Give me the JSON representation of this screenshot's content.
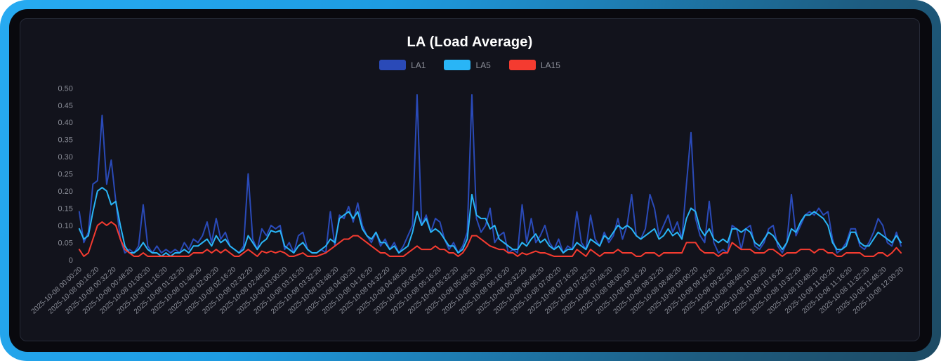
{
  "panel": {
    "title": "LA (Load Average)"
  },
  "chart_data": {
    "type": "line",
    "title": "LA (Load Average)",
    "xlabel": "",
    "ylabel": "",
    "ylim": [
      0,
      0.5
    ],
    "grid": false,
    "legend_position": "top-center",
    "background_color": "#12131c",
    "tick_text_color": "#8b8e98",
    "title_color": "#ffffff",
    "y_ticks": [
      "0",
      "0.05",
      "0.10",
      "0.15",
      "0.20",
      "0.25",
      "0.30",
      "0.35",
      "0.40",
      "0.45",
      "0.50"
    ],
    "x_labels": [
      "2025-10-08 00:00:20",
      "2025-10-08 00:16:20",
      "2025-10-08 00:32:20",
      "2025-10-08 00:48:20",
      "2025-10-08 01:00:20",
      "2025-10-08 01:16:20",
      "2025-10-08 01:32:20",
      "2025-10-08 01:48:20",
      "2025-10-08 02:00:20",
      "2025-10-08 02:16:20",
      "2025-10-08 02:32:20",
      "2025-10-08 02:48:20",
      "2025-10-08 03:00:20",
      "2025-10-08 03:16:20",
      "2025-10-08 03:32:20",
      "2025-10-08 03:48:20",
      "2025-10-08 04:00:20",
      "2025-10-08 04:16:20",
      "2025-10-08 04:32:20",
      "2025-10-08 04:48:20",
      "2025-10-08 05:00:20",
      "2025-10-08 05:16:20",
      "2025-10-08 05:32:20",
      "2025-10-08 05:48:20",
      "2025-10-08 06:00:20",
      "2025-10-08 06:16:20",
      "2025-10-08 06:32:20",
      "2025-10-08 06:48:20",
      "2025-10-08 07:00:20",
      "2025-10-08 07:16:20",
      "2025-10-08 07:32:20",
      "2025-10-08 07:48:20",
      "2025-10-08 08:00:20",
      "2025-10-08 08:16:20",
      "2025-10-08 08:32:20",
      "2025-10-08 08:48:20",
      "2025-10-08 09:00:20",
      "2025-10-08 09:16:20",
      "2025-10-08 09:32:20",
      "2025-10-08 09:48:20",
      "2025-10-08 10:00:20",
      "2025-10-08 10:16:20",
      "2025-10-08 10:32:20",
      "2025-10-08 10:48:20",
      "2025-10-08 11:00:20",
      "2025-10-08 11:16:20",
      "2025-10-08 11:32:20",
      "2025-10-08 11:48:20",
      "2025-10-08 12:00:20"
    ],
    "sample_interval_minutes": 4,
    "series": [
      {
        "name": "LA1",
        "color": "#2a4ab8",
        "values": [
          0.14,
          0.05,
          0.08,
          0.22,
          0.23,
          0.42,
          0.22,
          0.29,
          0.17,
          0.06,
          0.02,
          0.03,
          0.02,
          0.04,
          0.16,
          0.04,
          0.02,
          0.04,
          0.02,
          0.03,
          0.02,
          0.03,
          0.02,
          0.05,
          0.03,
          0.06,
          0.05,
          0.07,
          0.11,
          0.05,
          0.12,
          0.06,
          0.08,
          0.04,
          0.03,
          0.02,
          0.04,
          0.25,
          0.06,
          0.03,
          0.09,
          0.07,
          0.1,
          0.09,
          0.1,
          0.03,
          0.05,
          0.02,
          0.07,
          0.08,
          0.03,
          0.02,
          0.02,
          0.03,
          0.02,
          0.14,
          0.04,
          0.13,
          0.12,
          0.155,
          0.11,
          0.165,
          0.1,
          0.07,
          0.05,
          0.08,
          0.04,
          0.06,
          0.03,
          0.05,
          0.02,
          0.04,
          0.07,
          0.1,
          0.48,
          0.1,
          0.13,
          0.08,
          0.12,
          0.11,
          0.06,
          0.03,
          0.05,
          0.02,
          0.04,
          0.08,
          0.48,
          0.12,
          0.08,
          0.1,
          0.15,
          0.05,
          0.07,
          0.08,
          0.02,
          0.03,
          0.02,
          0.16,
          0.05,
          0.12,
          0.05,
          0.07,
          0.1,
          0.05,
          0.03,
          0.06,
          0.02,
          0.04,
          0.03,
          0.14,
          0.05,
          0.03,
          0.13,
          0.06,
          0.04,
          0.08,
          0.05,
          0.07,
          0.12,
          0.06,
          0.1,
          0.19,
          0.07,
          0.06,
          0.09,
          0.19,
          0.15,
          0.07,
          0.1,
          0.13,
          0.08,
          0.11,
          0.06,
          0.22,
          0.37,
          0.12,
          0.07,
          0.05,
          0.17,
          0.05,
          0.02,
          0.03,
          0.02,
          0.1,
          0.09,
          0.03,
          0.09,
          0.1,
          0.04,
          0.03,
          0.05,
          0.09,
          0.1,
          0.04,
          0.02,
          0.05,
          0.19,
          0.07,
          0.1,
          0.13,
          0.14,
          0.13,
          0.15,
          0.13,
          0.14,
          0.06,
          0.02,
          0.03,
          0.05,
          0.09,
          0.09,
          0.04,
          0.03,
          0.05,
          0.08,
          0.12,
          0.1,
          0.05,
          0.04,
          0.08,
          0.04
        ]
      },
      {
        "name": "LA5",
        "color": "#29b5f6",
        "values": [
          0.09,
          0.06,
          0.07,
          0.14,
          0.2,
          0.21,
          0.2,
          0.16,
          0.17,
          0.1,
          0.04,
          0.02,
          0.02,
          0.03,
          0.05,
          0.03,
          0.02,
          0.02,
          0.01,
          0.02,
          0.01,
          0.02,
          0.02,
          0.03,
          0.02,
          0.04,
          0.04,
          0.05,
          0.06,
          0.04,
          0.07,
          0.05,
          0.06,
          0.04,
          0.03,
          0.02,
          0.03,
          0.07,
          0.05,
          0.03,
          0.05,
          0.06,
          0.085,
          0.08,
          0.085,
          0.04,
          0.03,
          0.02,
          0.04,
          0.05,
          0.03,
          0.02,
          0.02,
          0.03,
          0.04,
          0.06,
          0.05,
          0.12,
          0.13,
          0.14,
          0.12,
          0.14,
          0.09,
          0.07,
          0.06,
          0.08,
          0.05,
          0.05,
          0.03,
          0.04,
          0.02,
          0.03,
          0.04,
          0.08,
          0.14,
          0.1,
          0.12,
          0.08,
          0.09,
          0.08,
          0.06,
          0.04,
          0.04,
          0.02,
          0.03,
          0.06,
          0.19,
          0.13,
          0.12,
          0.12,
          0.09,
          0.1,
          0.06,
          0.05,
          0.04,
          0.03,
          0.03,
          0.05,
          0.04,
          0.06,
          0.075,
          0.05,
          0.06,
          0.04,
          0.03,
          0.04,
          0.02,
          0.03,
          0.03,
          0.05,
          0.04,
          0.03,
          0.06,
          0.05,
          0.04,
          0.07,
          0.06,
          0.08,
          0.1,
          0.09,
          0.1,
          0.09,
          0.07,
          0.06,
          0.07,
          0.08,
          0.09,
          0.06,
          0.07,
          0.09,
          0.07,
          0.08,
          0.06,
          0.12,
          0.15,
          0.14,
          0.09,
          0.07,
          0.09,
          0.06,
          0.05,
          0.06,
          0.05,
          0.09,
          0.09,
          0.08,
          0.09,
          0.08,
          0.05,
          0.04,
          0.06,
          0.08,
          0.07,
          0.05,
          0.03,
          0.05,
          0.09,
          0.08,
          0.11,
          0.13,
          0.13,
          0.14,
          0.13,
          0.12,
          0.1,
          0.05,
          0.03,
          0.03,
          0.04,
          0.08,
          0.08,
          0.05,
          0.04,
          0.04,
          0.06,
          0.08,
          0.07,
          0.06,
          0.05,
          0.07,
          0.05
        ]
      },
      {
        "name": "LA15",
        "color": "#f43b30",
        "values": [
          0.03,
          0.01,
          0.02,
          0.06,
          0.1,
          0.11,
          0.1,
          0.11,
          0.1,
          0.06,
          0.03,
          0.02,
          0.01,
          0.01,
          0.02,
          0.01,
          0.01,
          0.01,
          0.01,
          0.01,
          0.01,
          0.01,
          0.01,
          0.01,
          0.01,
          0.02,
          0.02,
          0.02,
          0.03,
          0.02,
          0.03,
          0.02,
          0.03,
          0.02,
          0.01,
          0.01,
          0.02,
          0.03,
          0.02,
          0.01,
          0.025,
          0.02,
          0.025,
          0.02,
          0.025,
          0.02,
          0.01,
          0.01,
          0.015,
          0.02,
          0.01,
          0.01,
          0.01,
          0.015,
          0.02,
          0.03,
          0.04,
          0.05,
          0.06,
          0.06,
          0.07,
          0.07,
          0.06,
          0.05,
          0.04,
          0.03,
          0.02,
          0.02,
          0.01,
          0.01,
          0.01,
          0.01,
          0.02,
          0.03,
          0.04,
          0.03,
          0.03,
          0.03,
          0.04,
          0.03,
          0.03,
          0.02,
          0.02,
          0.01,
          0.02,
          0.04,
          0.07,
          0.07,
          0.06,
          0.05,
          0.04,
          0.035,
          0.03,
          0.03,
          0.02,
          0.02,
          0.01,
          0.02,
          0.015,
          0.02,
          0.025,
          0.02,
          0.02,
          0.015,
          0.01,
          0.01,
          0.01,
          0.01,
          0.01,
          0.03,
          0.02,
          0.01,
          0.03,
          0.02,
          0.01,
          0.02,
          0.02,
          0.02,
          0.03,
          0.02,
          0.02,
          0.02,
          0.01,
          0.01,
          0.02,
          0.02,
          0.02,
          0.01,
          0.02,
          0.02,
          0.02,
          0.02,
          0.02,
          0.05,
          0.05,
          0.05,
          0.03,
          0.02,
          0.02,
          0.02,
          0.01,
          0.02,
          0.02,
          0.05,
          0.04,
          0.03,
          0.03,
          0.03,
          0.02,
          0.02,
          0.02,
          0.03,
          0.03,
          0.02,
          0.01,
          0.02,
          0.02,
          0.02,
          0.03,
          0.03,
          0.03,
          0.02,
          0.03,
          0.03,
          0.02,
          0.02,
          0.01,
          0.01,
          0.02,
          0.02,
          0.02,
          0.02,
          0.01,
          0.01,
          0.01,
          0.02,
          0.02,
          0.01,
          0.02,
          0.035,
          0.02
        ]
      }
    ]
  }
}
